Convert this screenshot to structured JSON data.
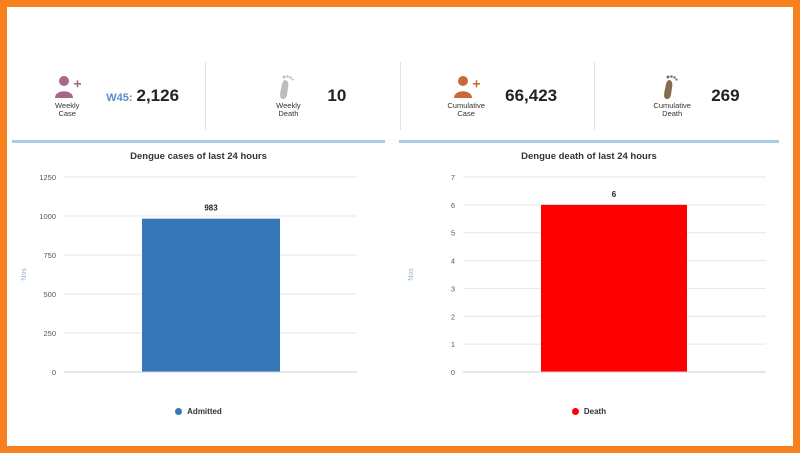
{
  "stats": [
    {
      "icon": "person-add-icon",
      "caption_line1": "Weekly",
      "caption_line2": "Case",
      "prefix": "W45:",
      "value": "2,126",
      "color": "#a6678d"
    },
    {
      "icon": "footprint-icon",
      "caption_line1": "Weekly",
      "caption_line2": "Death",
      "prefix": "",
      "value": "10",
      "color": "#bdbdbd"
    },
    {
      "icon": "person-add-icon",
      "caption_line1": "Cumulative",
      "caption_line2": "Case",
      "prefix": "",
      "value": "66,423",
      "color": "#c9693a"
    },
    {
      "icon": "footprint-icon",
      "caption_line1": "Cumulative",
      "caption_line2": "Death",
      "prefix": "",
      "value": "269",
      "color": "#8a6a4e"
    }
  ],
  "chart_data": [
    {
      "type": "bar",
      "title": "Dengue cases of last 24 hours",
      "ylabel": "Nos",
      "categories": [
        "Admitted"
      ],
      "values": [
        983
      ],
      "ylim": [
        0,
        1250
      ],
      "yticks": [
        "0",
        "250",
        "500",
        "750",
        "1000",
        "1250"
      ],
      "color": "#3577b8",
      "legend": [
        "Admitted"
      ]
    },
    {
      "type": "bar",
      "title": "Dengue death of last 24 hours",
      "ylabel": "Nos",
      "categories": [
        "Death"
      ],
      "values": [
        6
      ],
      "ylim": [
        0,
        7
      ],
      "yticks": [
        "0",
        "1",
        "2",
        "3",
        "4",
        "5",
        "6",
        "7"
      ],
      "color": "#ff0000",
      "legend": [
        "Death"
      ]
    }
  ]
}
